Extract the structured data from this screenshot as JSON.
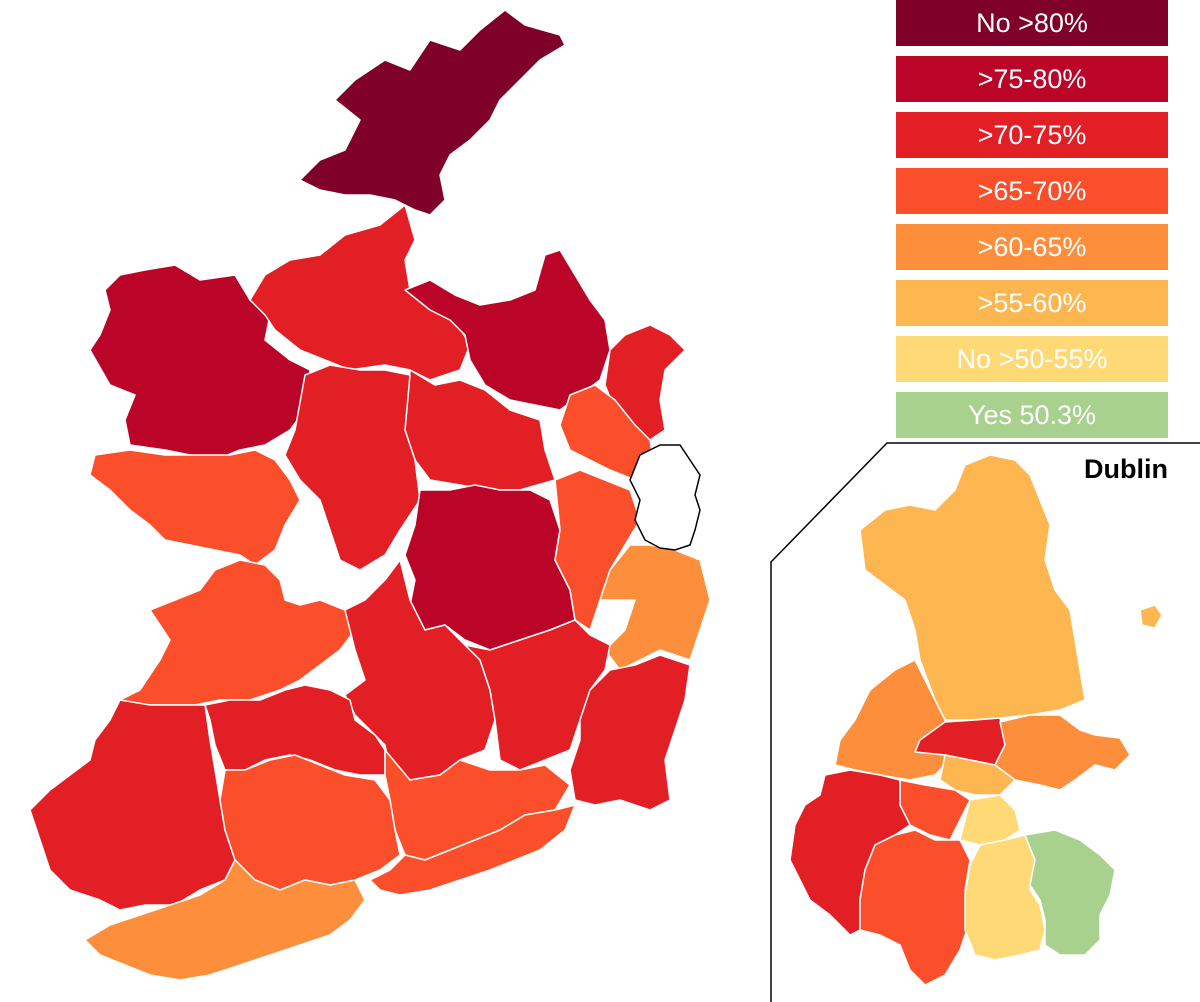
{
  "legend": {
    "items": [
      {
        "label": "No >80%",
        "color": "#7f0029"
      },
      {
        "label": ">75-80%",
        "color": "#bb0528"
      },
      {
        "label": ">70-75%",
        "color": "#e31f26"
      },
      {
        "label": ">65-70%",
        "color": "#fb4f2b"
      },
      {
        "label": ">60-65%",
        "color": "#fd8f3c"
      },
      {
        "label": ">55-60%",
        "color": "#feb651"
      },
      {
        "label": "No >50-55%",
        "color": "#fed976"
      },
      {
        "label": "Yes 50.3%",
        "color": "#a9d18e"
      }
    ]
  },
  "inset": {
    "title": "Dublin"
  },
  "colors": {
    "no_over_80": "#7f0029",
    "r75_80": "#bb0528",
    "r70_75": "#e31f26",
    "r65_70": "#fb4f2b",
    "r60_65": "#fd8f3c",
    "r55_60": "#feb651",
    "r50_55": "#fed976",
    "yes": "#a9d18e",
    "outline": "#000000"
  }
}
